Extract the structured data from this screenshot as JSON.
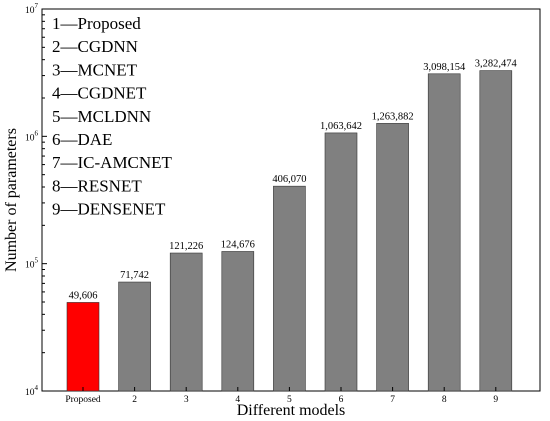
{
  "chart_data": {
    "type": "bar",
    "title": "",
    "xlabel": "Different models",
    "ylabel": "Number of parameters",
    "yscale": "log",
    "ylim": [
      10000,
      10000000
    ],
    "ytick_labels": [
      {
        "base": "10",
        "exp": "4",
        "value": 10000
      },
      {
        "base": "10",
        "exp": "5",
        "value": 100000
      },
      {
        "base": "10",
        "exp": "6",
        "value": 1000000
      },
      {
        "base": "10",
        "exp": "7",
        "value": 10000000
      }
    ],
    "grid": false,
    "legend_position": "top-left",
    "categories": [
      "Proposed",
      "2",
      "3",
      "4",
      "5",
      "6",
      "7",
      "8",
      "9"
    ],
    "values": [
      49606,
      71742,
      121226,
      124676,
      406070,
      1063642,
      1263882,
      3098154,
      3282474
    ],
    "data_labels": [
      "49,606",
      "71,742",
      "121,226",
      "124,676",
      "406,070",
      "1,063,642",
      "1,263,882",
      "3,098,154",
      "3,282,474"
    ],
    "bar_colors": [
      "#ff0000",
      "#808080",
      "#808080",
      "#808080",
      "#808080",
      "#808080",
      "#808080",
      "#808080",
      "#808080"
    ],
    "legend_entries": [
      "1—Proposed",
      "2—CGDNN",
      "3—MCNET",
      "4—CGDNET",
      "5—MCLDNN",
      "6—DAE",
      "7—IC-AMCNET",
      "8—RESNET",
      "9—DENSENET"
    ]
  }
}
